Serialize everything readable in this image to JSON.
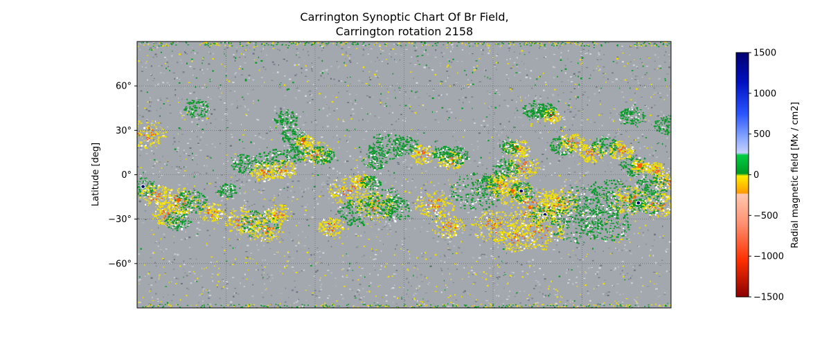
{
  "chart_data": {
    "type": "heatmap",
    "title_line1": "Carrington Synoptic Chart Of Br Field,",
    "title_line2": "Carrington rotation 2158",
    "xlabel": "",
    "ylabel": "Latitude [deg]",
    "ylim": [
      -90,
      90
    ],
    "y_ticks": [
      60,
      30,
      0,
      -30,
      -60
    ],
    "y_tick_labels": [
      "60°",
      "30°",
      "0°",
      "−30°",
      "−60°"
    ],
    "grid": true,
    "colorbar": {
      "label": "Radial magnetic field [Mx / cm2]",
      "range": [
        -1500,
        1500
      ],
      "ticks": [
        1500,
        1000,
        500,
        0,
        -500,
        -1000,
        -1500
      ],
      "tick_labels": [
        "1500",
        "1000",
        "500",
        "0",
        "−500",
        "−1000",
        "−1500"
      ],
      "placement": "right"
    },
    "colors": {
      "background": "#a3a7ae",
      "positive_weak": "#0a9a2a",
      "negative_weak": "#f2e000",
      "negative_strong": "#ff5a00",
      "negative_extreme": "#b00000",
      "positive_strong": "#1f4dff",
      "positive_extreme": "#00006e"
    },
    "regions": [
      {
        "lon": 6,
        "lat": 28,
        "r": 6,
        "pol": -1,
        "strength": 1
      },
      {
        "lon": 4,
        "lat": -8,
        "r": 4,
        "pol": 1,
        "strength": 3
      },
      {
        "lon": 12,
        "lat": -14,
        "r": 5,
        "pol": -1,
        "strength": 1
      },
      {
        "lon": 28,
        "lat": -17,
        "r": 6,
        "pol": -1,
        "strength": 2
      },
      {
        "lon": 36,
        "lat": -18,
        "r": 5,
        "pol": 1,
        "strength": 1
      },
      {
        "lon": 20,
        "lat": -26,
        "r": 5,
        "pol": -1,
        "strength": 1
      },
      {
        "lon": 27,
        "lat": -31,
        "r": 4,
        "pol": 1,
        "strength": 1
      },
      {
        "lon": 72,
        "lat": -31,
        "r": 6,
        "pol": -1,
        "strength": 1
      },
      {
        "lon": 82,
        "lat": -33,
        "r": 6,
        "pol": 1,
        "strength": 1
      },
      {
        "lon": 87,
        "lat": -37,
        "r": 5,
        "pol": -1,
        "strength": 1
      },
      {
        "lon": 89,
        "lat": 10,
        "r": 5,
        "pol": 1,
        "strength": 1
      },
      {
        "lon": 98,
        "lat": 4,
        "r": 4,
        "pol": -1,
        "strength": 1
      },
      {
        "lon": 107,
        "lat": 15,
        "r": 4,
        "pol": 1,
        "strength": 1
      },
      {
        "lon": 112,
        "lat": 23,
        "r": 3,
        "pol": -1,
        "strength": 2
      },
      {
        "lon": 120,
        "lat": 15,
        "r": 5,
        "pol": -1,
        "strength": 1
      },
      {
        "lon": 124,
        "lat": 14,
        "r": 4,
        "pol": 1,
        "strength": 1
      },
      {
        "lon": 105,
        "lat": 26,
        "r": 4,
        "pol": 1,
        "strength": 1
      },
      {
        "lon": 142,
        "lat": -10,
        "r": 6,
        "pol": -1,
        "strength": 1
      },
      {
        "lon": 148,
        "lat": -25,
        "r": 6,
        "pol": 1,
        "strength": 1
      },
      {
        "lon": 160,
        "lat": -20,
        "r": 6,
        "pol": -1,
        "strength": 1
      },
      {
        "lon": 167,
        "lat": -18,
        "r": 6,
        "pol": 1,
        "strength": 1
      },
      {
        "lon": 174,
        "lat": -23,
        "r": 5,
        "pol": 1,
        "strength": 1
      },
      {
        "lon": 168,
        "lat": 20,
        "r": 6,
        "pol": 1,
        "strength": 1
      },
      {
        "lon": 180,
        "lat": 20,
        "r": 4,
        "pol": 1,
        "strength": 1
      },
      {
        "lon": 192,
        "lat": 14,
        "r": 4,
        "pol": -1,
        "strength": 1
      },
      {
        "lon": 160,
        "lat": 10,
        "r": 4,
        "pol": 1,
        "strength": 1
      },
      {
        "lon": 151,
        "lat": -4,
        "r": 3,
        "pol": -1,
        "strength": 1
      },
      {
        "lon": 157,
        "lat": -5,
        "r": 3,
        "pol": 1,
        "strength": 1
      },
      {
        "lon": 211,
        "lat": 10,
        "r": 4,
        "pol": -1,
        "strength": 1
      },
      {
        "lon": 215,
        "lat": 13,
        "r": 4,
        "pol": 1,
        "strength": 1
      },
      {
        "lon": 205,
        "lat": 15,
        "r": 3,
        "pol": 1,
        "strength": 1
      },
      {
        "lon": 228,
        "lat": -11,
        "r": 8,
        "pol": 1,
        "strength": 1
      },
      {
        "lon": 237,
        "lat": -6,
        "r": 5,
        "pol": 1,
        "strength": 1
      },
      {
        "lon": 246,
        "lat": -6,
        "r": 5,
        "pol": -1,
        "strength": 1
      },
      {
        "lon": 253,
        "lat": -11,
        "r": 6,
        "pol": -1,
        "strength": 2
      },
      {
        "lon": 259,
        "lat": -11,
        "r": 4,
        "pol": 1,
        "strength": 3
      },
      {
        "lon": 265,
        "lat": -22,
        "r": 9,
        "pol": -1,
        "strength": 2
      },
      {
        "lon": 278,
        "lat": -22,
        "r": 6,
        "pol": -1,
        "strength": 3
      },
      {
        "lon": 275,
        "lat": -27,
        "r": 5,
        "pol": 1,
        "strength": 3
      },
      {
        "lon": 270,
        "lat": -38,
        "r": 8,
        "pol": -1,
        "strength": 1
      },
      {
        "lon": 285,
        "lat": -18,
        "r": 6,
        "pol": -1,
        "strength": 1
      },
      {
        "lon": 240,
        "lat": -34,
        "r": 7,
        "pol": -1,
        "strength": 1
      },
      {
        "lon": 255,
        "lat": -42,
        "r": 6,
        "pol": -1,
        "strength": 1
      },
      {
        "lon": 305,
        "lat": -22,
        "r": 10,
        "pol": 1,
        "strength": 1
      },
      {
        "lon": 318,
        "lat": -15,
        "r": 8,
        "pol": 1,
        "strength": 1
      },
      {
        "lon": 315,
        "lat": -32,
        "r": 8,
        "pol": 1,
        "strength": 1
      },
      {
        "lon": 296,
        "lat": -34,
        "r": 8,
        "pol": 1,
        "strength": 1
      },
      {
        "lon": 268,
        "lat": 44,
        "r": 4,
        "pol": 1,
        "strength": 1
      },
      {
        "lon": 279,
        "lat": 40,
        "r": 3,
        "pol": -1,
        "strength": 3
      },
      {
        "lon": 276,
        "lat": 44,
        "r": 3,
        "pol": 1,
        "strength": 1
      },
      {
        "lon": 256,
        "lat": 18,
        "r": 4,
        "pol": -1,
        "strength": 2
      },
      {
        "lon": 250,
        "lat": 19,
        "r": 3,
        "pol": 1,
        "strength": 1
      },
      {
        "lon": 286,
        "lat": 20,
        "r": 4,
        "pol": 1,
        "strength": 1
      },
      {
        "lon": 293,
        "lat": 22,
        "r": 4,
        "pol": -1,
        "strength": 1
      },
      {
        "lon": 306,
        "lat": 15,
        "r": 4,
        "pol": -1,
        "strength": 1
      },
      {
        "lon": 315,
        "lat": 20,
        "r": 4,
        "pol": 1,
        "strength": 1
      },
      {
        "lon": 326,
        "lat": 17,
        "r": 4,
        "pol": -1,
        "strength": 1
      },
      {
        "lon": 334,
        "lat": 6,
        "r": 4,
        "pol": 1,
        "strength": 1
      },
      {
        "lon": 339,
        "lat": 6,
        "r": 3,
        "pol": -1,
        "strength": 2
      },
      {
        "lon": 349,
        "lat": 4,
        "r": 3,
        "pol": -1,
        "strength": 1
      },
      {
        "lon": 260,
        "lat": 6,
        "r": 5,
        "pol": -1,
        "strength": 1
      },
      {
        "lon": 248,
        "lat": 5,
        "r": 4,
        "pol": 1,
        "strength": 1
      },
      {
        "lon": 356,
        "lat": -5,
        "r": 4,
        "pol": -1,
        "strength": 1
      },
      {
        "lon": 347,
        "lat": -7,
        "r": 5,
        "pol": 1,
        "strength": 1
      },
      {
        "lon": 332,
        "lat": -17,
        "r": 6,
        "pol": -1,
        "strength": 1
      },
      {
        "lon": 342,
        "lat": -18,
        "r": 6,
        "pol": 1,
        "strength": 1
      },
      {
        "lon": 338,
        "lat": -19,
        "r": 2,
        "pol": 1,
        "strength": 3
      },
      {
        "lon": 351,
        "lat": -20,
        "r": 5,
        "pol": -1,
        "strength": 1
      },
      {
        "lon": 333,
        "lat": 40,
        "r": 4,
        "pol": 1,
        "strength": 1
      },
      {
        "lon": 357,
        "lat": 34,
        "r": 4,
        "pol": 1,
        "strength": 1
      },
      {
        "lon": 72,
        "lat": 8,
        "r": 4,
        "pol": 1,
        "strength": 1
      },
      {
        "lon": 85,
        "lat": 2,
        "r": 4,
        "pol": -1,
        "strength": 1
      },
      {
        "lon": 50,
        "lat": -25,
        "r": 4,
        "pol": -1,
        "strength": 1
      },
      {
        "lon": 60,
        "lat": -10,
        "r": 3,
        "pol": 1,
        "strength": 1
      },
      {
        "lon": 95,
        "lat": -26,
        "r": 4,
        "pol": -1,
        "strength": 1
      },
      {
        "lon": 130,
        "lat": -35,
        "r": 4,
        "pol": -1,
        "strength": 1
      },
      {
        "lon": 200,
        "lat": -20,
        "r": 6,
        "pol": -1,
        "strength": 1
      },
      {
        "lon": 210,
        "lat": -35,
        "r": 5,
        "pol": -1,
        "strength": 1
      },
      {
        "lon": 40,
        "lat": 45,
        "r": 4,
        "pol": 1,
        "strength": 1
      },
      {
        "lon": 100,
        "lat": 38,
        "r": 4,
        "pol": 1,
        "strength": 1
      }
    ]
  }
}
